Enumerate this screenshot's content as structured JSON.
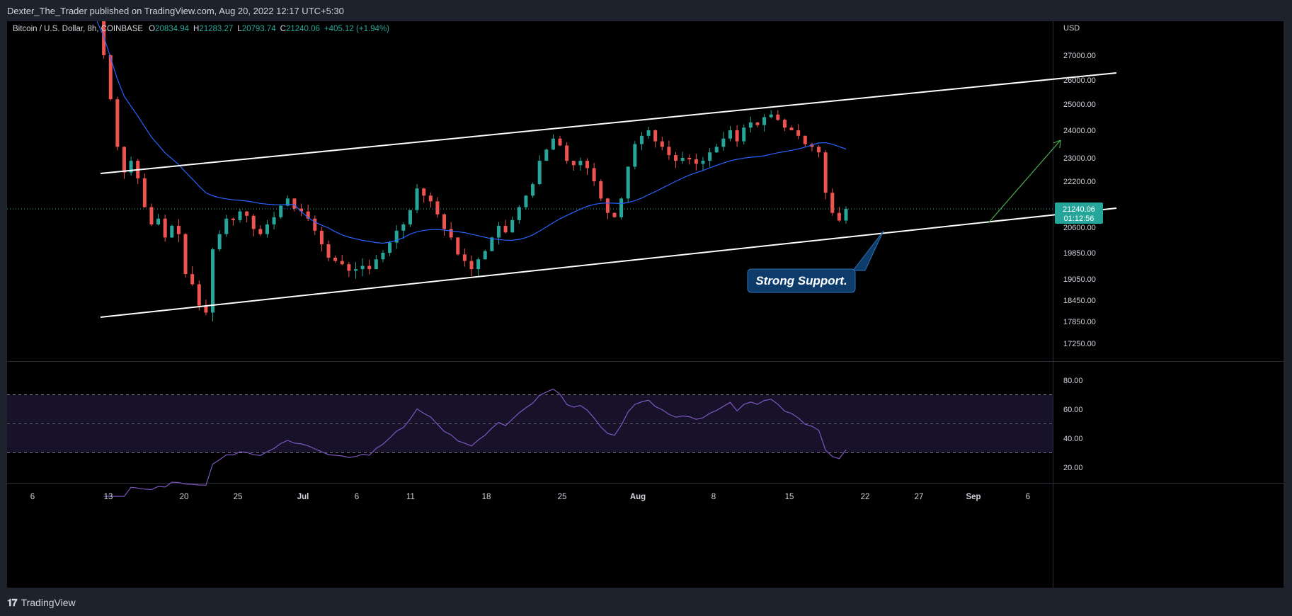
{
  "header": {
    "published": "Dexter_The_Trader published on TradingView.com, Aug 20, 2022 12:17 UTC+5:30"
  },
  "footer": {
    "brand": "TradingView"
  },
  "legend": {
    "symbol": "Bitcoin / U.S. Dollar, 8h, COINBASE",
    "o_label": "O",
    "o_val": "20834.94",
    "h_label": "H",
    "h_val": "21283.27",
    "l_label": "L",
    "l_val": "20793.74",
    "c_label": "C",
    "c_val": "21240.06",
    "change": "+405.12 (+1.94%)"
  },
  "price_axis": {
    "currency": "USD",
    "ticks": [
      27000,
      26000,
      25000,
      24000,
      23000,
      22200,
      20600,
      19850,
      19050,
      18450,
      17850,
      17250
    ],
    "tick_labels": [
      "27000.00",
      "26000.00",
      "25000.00",
      "24000.00",
      "23000.00",
      "22200.00",
      "20600.00",
      "19850.00",
      "19050.00",
      "18450.00",
      "17850.00",
      "17250.00"
    ],
    "last_price": "21240.06",
    "countdown": "01:12:56"
  },
  "rsi_axis": {
    "tick_labels": [
      "80.00",
      "60.00",
      "40.00",
      "20.00"
    ],
    "ticks": [
      80,
      60,
      40,
      20
    ],
    "upper": 70,
    "mid": 50,
    "lower": 30
  },
  "time_axis": {
    "labels": [
      "6",
      "13",
      "20",
      "25",
      "Jul",
      "6",
      "11",
      "18",
      "25",
      "Aug",
      "8",
      "15",
      "22",
      "27",
      "Sep",
      "6"
    ],
    "bold": [
      "Jul",
      "Aug",
      "Sep"
    ]
  },
  "annotation": {
    "text": "Strong Support."
  },
  "colors": {
    "up": "#26a69a",
    "down": "#ef5350",
    "ma": "#2962ff",
    "rsi": "#7e57c2",
    "line": "#ffffff",
    "arrow": "#4caf50",
    "last": "#26a69a"
  },
  "chart_data": {
    "type": "candlestick",
    "symbol": "Bitcoin / U.S. Dollar",
    "interval": "8h",
    "exchange": "COINBASE",
    "x_range": [
      "2022-06-06",
      "2022-09-06"
    ],
    "y_range": [
      17000,
      27500
    ],
    "closes": [
      28500,
      27000,
      25200,
      23400,
      22500,
      22900,
      22300,
      21300,
      20700,
      20900,
      20300,
      20650,
      20400,
      19200,
      18900,
      18300,
      18100,
      19950,
      20400,
      20900,
      20850,
      21150,
      21000,
      20550,
      20400,
      20700,
      20950,
      21350,
      21600,
      21250,
      21150,
      20900,
      20500,
      20100,
      19700,
      19600,
      19500,
      19300,
      19350,
      19450,
      19350,
      19650,
      19850,
      20150,
      20500,
      20700,
      21200,
      21950,
      21700,
      21500,
      21050,
      20550,
      20300,
      19800,
      19600,
      19350,
      19650,
      19900,
      20300,
      20650,
      20450,
      20850,
      21300,
      21700,
      22100,
      22900,
      23300,
      23700,
      23450,
      22900,
      22750,
      22900,
      22650,
      22200,
      21600,
      21100,
      20950,
      21600,
      22700,
      23500,
      23800,
      24000,
      23600,
      23400,
      23100,
      22900,
      23000,
      22950,
      22800,
      22900,
      23200,
      23400,
      23700,
      24000,
      23600,
      24100,
      24300,
      24200,
      24500,
      24600,
      24400,
      24100,
      24000,
      23800,
      23500,
      23400,
      23200,
      21800,
      21100,
      20834,
      21240
    ],
    "ma_period": 30,
    "rsi": {
      "period": 14,
      "range": [
        0,
        100
      ],
      "levels": [
        30,
        50,
        70
      ]
    },
    "drawings": [
      {
        "type": "trendline",
        "name": "channel-top"
      },
      {
        "type": "trendline",
        "name": "channel-bottom"
      },
      {
        "type": "arrow",
        "name": "projection"
      },
      {
        "type": "callout",
        "text": "Strong Support."
      }
    ]
  }
}
